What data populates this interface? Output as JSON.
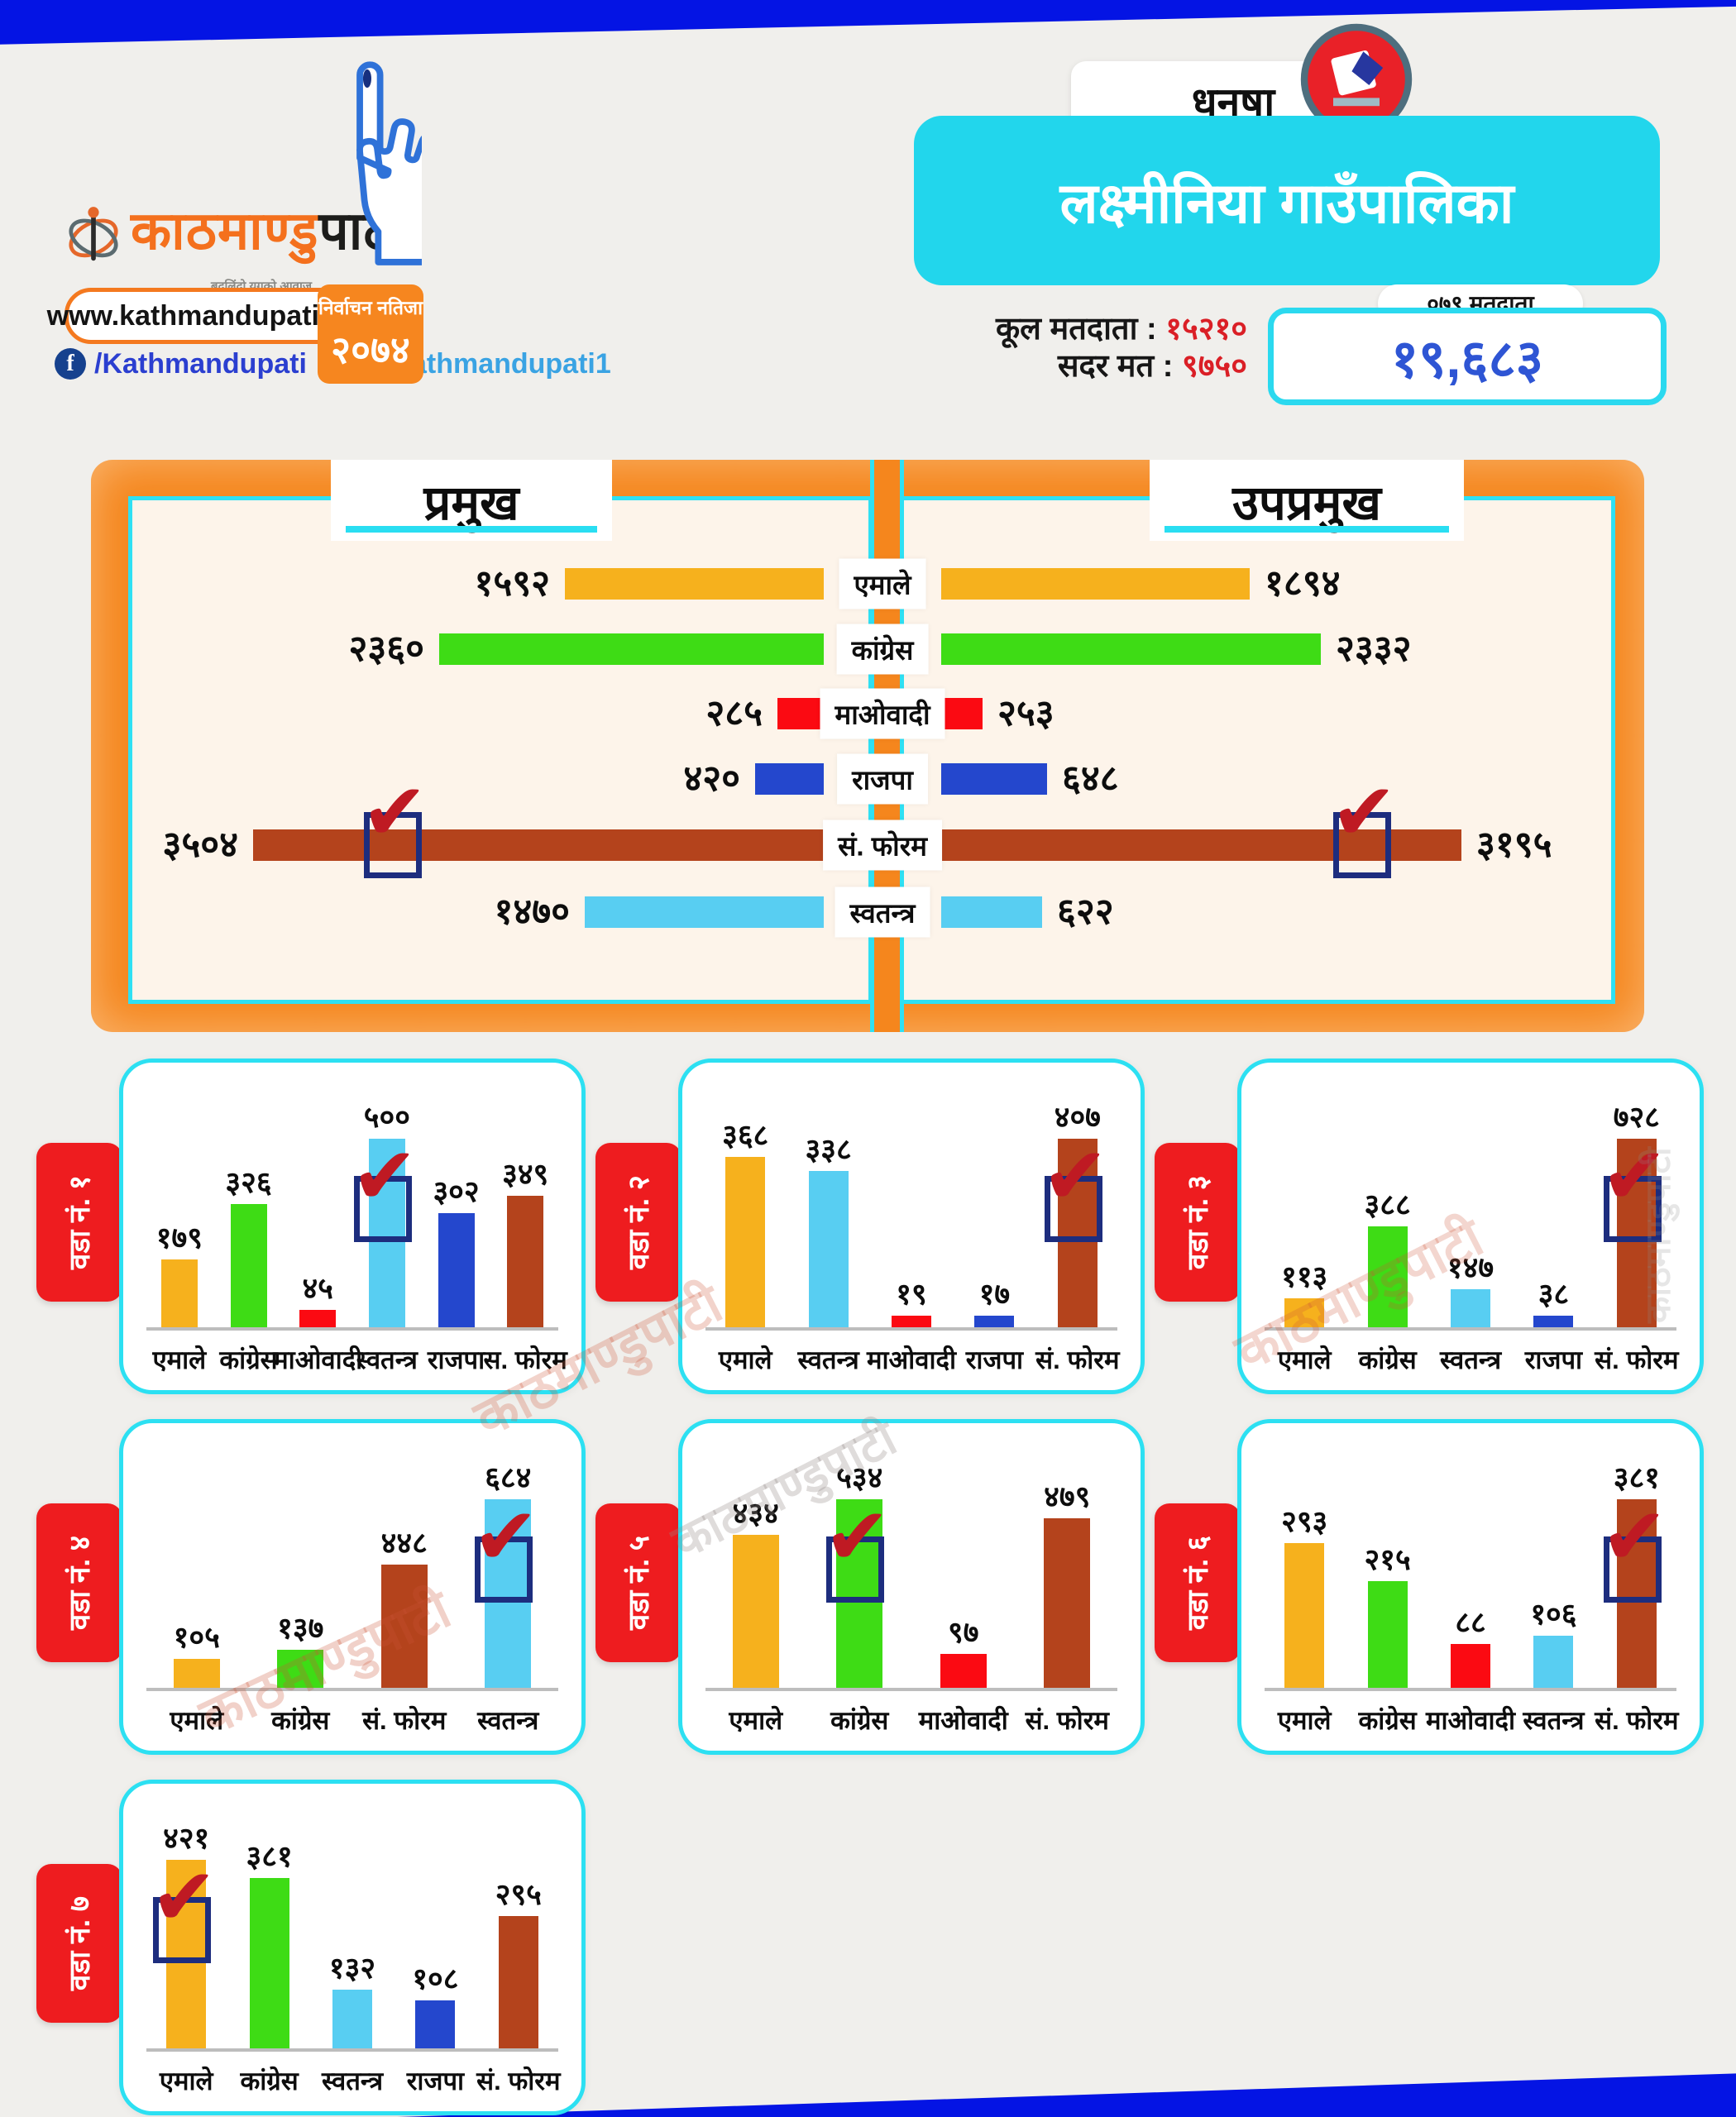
{
  "header": {
    "brand": {
      "logo_orange": "काठमाण्डु",
      "logo_black": "पाटी",
      "tagline": "बदलिंदो युगको आवाज",
      "website": "www.kathmandupati.com",
      "facebook": "/Kathmandupati",
      "twitter": "@kathmandupati1"
    },
    "badge": {
      "line1": "निर्वाचन नतिजा",
      "line2": "२०७४"
    },
    "district": "धनुषा",
    "municipality": "लक्ष्मीनिया गाउँपालिका",
    "stats": {
      "total_label": "कूल मतदाता :",
      "total_value": "१५२१०",
      "valid_label": "सदर मत :",
      "valid_value": "९७५०"
    },
    "turnout": {
      "pill": "०७९ मतदाता",
      "value": "१९,६८३"
    }
  },
  "colors": {
    "uml_yellow": "#f6b11d",
    "congress_green": "#3edc15",
    "maoist_red": "#fb0a12",
    "rajpa_blue": "#2447cd",
    "forum_brown": "#b4431c",
    "independent_sky": "#58cef2",
    "band_blue": "#0414e4",
    "frame_orange": "#f5861d",
    "cyan": "#2fe0f3",
    "tab_red": "#ee1c1f"
  },
  "main_chart": {
    "left_title": "प्रमुख",
    "right_title": "उपप्रमुख",
    "max_value": 3504,
    "rows": [
      {
        "party": "एमाले",
        "color": "#f6b11d",
        "left_value": 1592,
        "left_label": "१५९२",
        "right_value": 1894,
        "right_label": "१८९४",
        "winner": false
      },
      {
        "party": "कांग्रेस",
        "color": "#3edc15",
        "left_value": 2360,
        "left_label": "२३६०",
        "right_value": 2332,
        "right_label": "२३३२",
        "winner": false
      },
      {
        "party": "माओवादी",
        "color": "#fb0a12",
        "left_value": 285,
        "left_label": "२८५",
        "right_value": 253,
        "right_label": "२५३",
        "winner": false
      },
      {
        "party": "राजपा",
        "color": "#2447cd",
        "left_value": 420,
        "left_label": "४२०",
        "right_value": 648,
        "right_label": "६४८",
        "winner": false
      },
      {
        "party": "सं. फोरम",
        "color": "#b4431c",
        "left_value": 3504,
        "left_label": "३५०४",
        "right_value": 3195,
        "right_label": "३१९५",
        "winner": true
      },
      {
        "party": "स्वतन्त्र",
        "color": "#58cef2",
        "left_value": 1470,
        "left_label": "१४७०",
        "right_value": 622,
        "right_label": "६२२",
        "winner": false
      }
    ]
  },
  "wards": [
    {
      "label": "वडा नं. १",
      "bars": [
        {
          "party": "एमाले",
          "value": 179,
          "value_label": "१७९",
          "color": "#f6b11d",
          "winner": false
        },
        {
          "party": "कांग्रेस",
          "value": 326,
          "value_label": "३२६",
          "color": "#3edc15",
          "winner": false
        },
        {
          "party": "माओवादी",
          "value": 45,
          "value_label": "४५",
          "color": "#fb0a12",
          "winner": false
        },
        {
          "party": "स्वतन्त्र",
          "value": 500,
          "value_label": "५००",
          "color": "#58cef2",
          "winner": true
        },
        {
          "party": "राजपा",
          "value": 302,
          "value_label": "३०२",
          "color": "#2447cd",
          "winner": false
        },
        {
          "party": "स. फोरम",
          "value": 349,
          "value_label": "३४९",
          "color": "#b4431c",
          "winner": false
        }
      ]
    },
    {
      "label": "वडा नं. २",
      "bars": [
        {
          "party": "एमाले",
          "value": 368,
          "value_label": "३६८",
          "color": "#f6b11d",
          "winner": false
        },
        {
          "party": "स्वतन्त्र",
          "value": 338,
          "value_label": "३३८",
          "color": "#58cef2",
          "winner": false
        },
        {
          "party": "माओवादी",
          "value": 19,
          "value_label": "१९",
          "color": "#fb0a12",
          "winner": false
        },
        {
          "party": "राजपा",
          "value": 17,
          "value_label": "१७",
          "color": "#2447cd",
          "winner": false
        },
        {
          "party": "सं. फोरम",
          "value": 407,
          "value_label": "४०७",
          "color": "#b4431c",
          "winner": true
        }
      ]
    },
    {
      "label": "वडा नं. ३",
      "bars": [
        {
          "party": "एमाले",
          "value": 113,
          "value_label": "११३",
          "color": "#f6b11d",
          "winner": false
        },
        {
          "party": "कांग्रेस",
          "value": 388,
          "value_label": "३८८",
          "color": "#3edc15",
          "winner": false
        },
        {
          "party": "स्वतन्त्र",
          "value": 147,
          "value_label": "१४७",
          "color": "#58cef2",
          "winner": false
        },
        {
          "party": "राजपा",
          "value": 38,
          "value_label": "३८",
          "color": "#2447cd",
          "winner": false
        },
        {
          "party": "सं. फोरम",
          "value": 728,
          "value_label": "७२८",
          "color": "#b4431c",
          "winner": true
        }
      ]
    },
    {
      "label": "वडा नं. ४",
      "bars": [
        {
          "party": "एमाले",
          "value": 105,
          "value_label": "१०५",
          "color": "#f6b11d",
          "winner": false
        },
        {
          "party": "कांग्रेस",
          "value": 137,
          "value_label": "१३७",
          "color": "#3edc15",
          "winner": false
        },
        {
          "party": "सं. फोरम",
          "value": 448,
          "value_label": "४४८",
          "color": "#b4431c",
          "winner": false
        },
        {
          "party": "स्वतन्त्र",
          "value": 684,
          "value_label": "६८४",
          "color": "#58cef2",
          "winner": true
        }
      ]
    },
    {
      "label": "वडा नं. ५",
      "bars": [
        {
          "party": "एमाले",
          "value": 434,
          "value_label": "४३४",
          "color": "#f6b11d",
          "winner": false
        },
        {
          "party": "कांग्रेस",
          "value": 534,
          "value_label": "५३४",
          "color": "#3edc15",
          "winner": true
        },
        {
          "party": "माओवादी",
          "value": 97,
          "value_label": "९७",
          "color": "#fb0a12",
          "winner": false
        },
        {
          "party": "सं. फोरम",
          "value": 479,
          "value_label": "४७९",
          "color": "#b4431c",
          "winner": false
        }
      ]
    },
    {
      "label": "वडा नं. ६",
      "bars": [
        {
          "party": "एमाले",
          "value": 293,
          "value_label": "२९३",
          "color": "#f6b11d",
          "winner": false
        },
        {
          "party": "कांग्रेस",
          "value": 215,
          "value_label": "२१५",
          "color": "#3edc15",
          "winner": false
        },
        {
          "party": "माओवादी",
          "value": 88,
          "value_label": "८८",
          "color": "#fb0a12",
          "winner": false
        },
        {
          "party": "स्वतन्त्र",
          "value": 106,
          "value_label": "१०६",
          "color": "#58cef2",
          "winner": false
        },
        {
          "party": "सं. फोरम",
          "value": 381,
          "value_label": "३८१",
          "color": "#b4431c",
          "winner": true
        }
      ]
    },
    {
      "label": "वडा नं. ७",
      "bars": [
        {
          "party": "एमाले",
          "value": 421,
          "value_label": "४२१",
          "color": "#f6b11d",
          "winner": true
        },
        {
          "party": "कांग्रेस",
          "value": 381,
          "value_label": "३८१",
          "color": "#3edc15",
          "winner": false
        },
        {
          "party": "स्वतन्त्र",
          "value": 132,
          "value_label": "१३२",
          "color": "#58cef2",
          "winner": false
        },
        {
          "party": "राजपा",
          "value": 108,
          "value_label": "१०८",
          "color": "#2447cd",
          "winner": false
        },
        {
          "party": "सं. फोरम",
          "value": 295,
          "value_label": "२९५",
          "color": "#b4431c",
          "winner": false
        }
      ]
    }
  ],
  "watermark": {
    "text": "काठमाण्डुपाटी"
  },
  "chart_data": [
    {
      "type": "bar",
      "orientation": "horizontal",
      "title": "प्रमुख",
      "categories": [
        "एमाले",
        "कांग्रेस",
        "माओवादी",
        "राजपा",
        "सं. फोरम",
        "स्वतन्त्र"
      ],
      "values": [
        1592,
        2360,
        285,
        420,
        3504,
        1470
      ],
      "winner": "सं. फोरम",
      "xlim": [
        0,
        3504
      ]
    },
    {
      "type": "bar",
      "orientation": "horizontal",
      "title": "उपप्रमुख",
      "categories": [
        "एमाले",
        "कांग्रेस",
        "माओवादी",
        "राजपा",
        "सं. फोरम",
        "स्वतन्त्र"
      ],
      "values": [
        1894,
        2332,
        253,
        648,
        3195,
        622
      ],
      "winner": "सं. फोरम",
      "xlim": [
        0,
        3504
      ]
    },
    {
      "type": "bar",
      "title": "वडा नं. १",
      "categories": [
        "एमाले",
        "कांग्रेस",
        "माओवादी",
        "स्वतन्त्र",
        "राजपा",
        "स. फोरम"
      ],
      "values": [
        179,
        326,
        45,
        500,
        302,
        349
      ],
      "winner": "स्वतन्त्र"
    },
    {
      "type": "bar",
      "title": "वडा नं. २",
      "categories": [
        "एमाले",
        "स्वतन्त्र",
        "माओवादी",
        "राजपा",
        "सं. फोरम"
      ],
      "values": [
        368,
        338,
        19,
        17,
        407
      ],
      "winner": "सं. फोरम"
    },
    {
      "type": "bar",
      "title": "वडा नं. ३",
      "categories": [
        "एमाले",
        "कांग्रेस",
        "स्वतन्त्र",
        "राजपा",
        "सं. फोरम"
      ],
      "values": [
        113,
        388,
        147,
        38,
        728
      ],
      "winner": "सं. फोरम"
    },
    {
      "type": "bar",
      "title": "वडा नं. ४",
      "categories": [
        "एमाले",
        "कांग्रेस",
        "सं. फोरम",
        "स्वतन्त्र"
      ],
      "values": [
        105,
        137,
        448,
        684
      ],
      "winner": "स्वतन्त्र"
    },
    {
      "type": "bar",
      "title": "वडा नं. ५",
      "categories": [
        "एमाले",
        "कांग्रेस",
        "माओवादी",
        "सं. फोरम"
      ],
      "values": [
        434,
        534,
        97,
        479
      ],
      "winner": "कांग्रेस"
    },
    {
      "type": "bar",
      "title": "वडा नं. ६",
      "categories": [
        "एमाले",
        "कांग्रेस",
        "माओवादी",
        "स्वतन्त्र",
        "सं. फोरम"
      ],
      "values": [
        293,
        215,
        88,
        106,
        381
      ],
      "winner": "सं. फोरम"
    },
    {
      "type": "bar",
      "title": "वडा नं. ७",
      "categories": [
        "एमाले",
        "कांग्रेस",
        "स्वतन्त्र",
        "राजपा",
        "सं. फोरम"
      ],
      "values": [
        421,
        381,
        132,
        108,
        295
      ],
      "winner": "एमाले"
    }
  ]
}
